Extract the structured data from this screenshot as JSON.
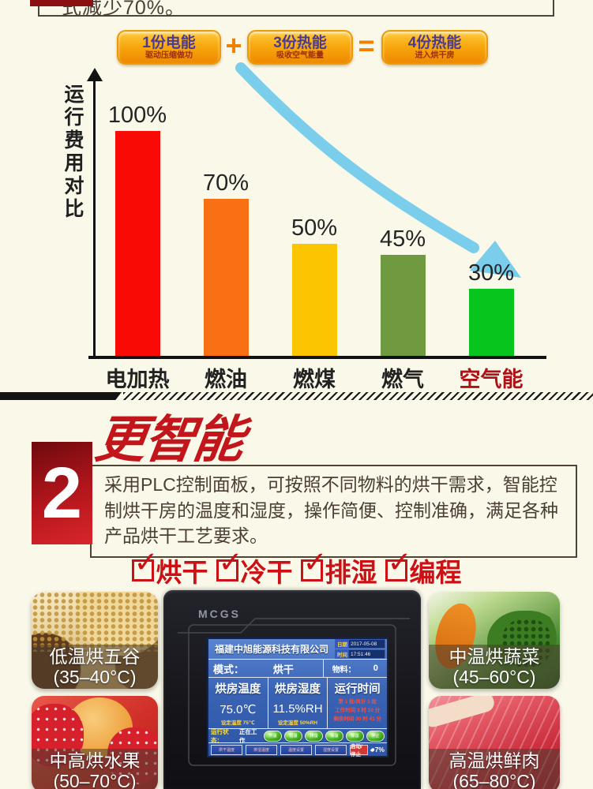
{
  "page": {
    "background": "#FAF8E9"
  },
  "top_note": {
    "text_fragment": "式减少70%。"
  },
  "equation": {
    "plus": "+",
    "equals": "=",
    "items": [
      {
        "title": "1份电能",
        "subtitle": "驱动压缩做功"
      },
      {
        "title": "3份热能",
        "subtitle": "吸收空气能量"
      },
      {
        "title": "4份热能",
        "subtitle": "进入烘干房"
      }
    ]
  },
  "chart_data": {
    "type": "bar",
    "axis_label": "运行费用对比",
    "categories": [
      "电加热",
      "燃油",
      "燃煤",
      "燃气",
      "空气能"
    ],
    "values": [
      100,
      70,
      50,
      45,
      30
    ],
    "value_labels": [
      "100%",
      "70%",
      "50%",
      "45%",
      "30%"
    ],
    "bar_colors": [
      "#FA0A05",
      "#F97014",
      "#FCC502",
      "#6F9A3F",
      "#07C51D"
    ],
    "category_colors": [
      "#222222",
      "#222222",
      "#222222",
      "#222222",
      "#AE1116"
    ],
    "ylim": [
      0,
      100
    ],
    "grid": false,
    "legend": "none",
    "annotations": [
      "light-blue descending arrow from 100% toward 30%"
    ]
  },
  "section2": {
    "number": "2",
    "script_title": "更智能",
    "body": "采用PLC控制面板，可按照不同物料的烘干需求，智能控制烘干房的温度和湿度，操作简便、控制准确，满足各种产品烘干工艺要求。",
    "features": [
      {
        "label": "烘干"
      },
      {
        "label": "冷干"
      },
      {
        "label": "排湿"
      },
      {
        "label": "编程"
      }
    ],
    "accent_color": "#C3161C"
  },
  "applications": [
    {
      "name": "低温烘五谷",
      "range": "(35–40°C)"
    },
    {
      "name": "中温烘蔬菜",
      "range": "(45–60°C)"
    },
    {
      "name": "中高烘水果",
      "range": "(50–70°C)"
    },
    {
      "name": "高温烘鲜肉",
      "range": "(65–80°C)"
    }
  ],
  "panel": {
    "brand": "MCGS",
    "screen": {
      "company": "福建中旭能源科技有限公司",
      "date_label": "日期",
      "date_value": "2017-05-08",
      "time_label": "时间",
      "time_value": "17:51:46",
      "mode_label": "模式：",
      "mode_value": "烘干",
      "material_label": "物料：",
      "material_value": "0",
      "temperature": {
        "title": "烘房温度",
        "value": "75.0℃",
        "setpoint": "设定温度 75℃"
      },
      "humidity": {
        "title": "烘房湿度",
        "value": "11.5%RH",
        "setpoint": "设定湿度 50%RH"
      },
      "runtime": {
        "title": "运行时间",
        "line1": "第 1 批/共计 1 批",
        "line2": "工作时间 3 时 10 分",
        "line3": "剩余时间 30 时 41 分"
      },
      "status_label": "运行状态：",
      "status_value": "正在工作",
      "indicators": [
        "升温",
        "恒温",
        "排湿",
        "保温",
        "除湿",
        "停止"
      ],
      "menu_buttons": [
        "烘干温度",
        "排湿温度",
        "温度设置",
        "湿度设置"
      ],
      "start_stop": "启动/停止",
      "humidity_pct": "7%"
    }
  }
}
